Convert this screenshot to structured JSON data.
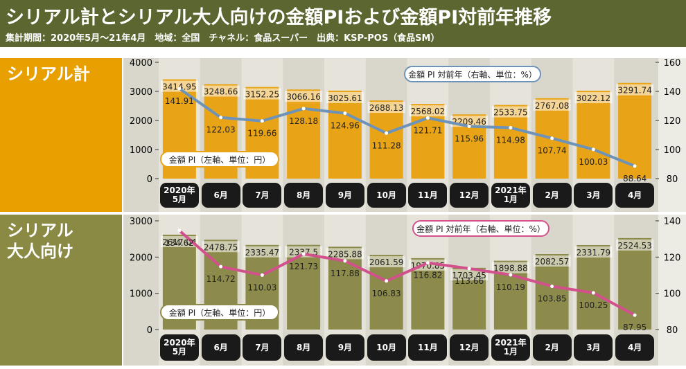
{
  "header": {
    "title": "シリアル計とシリアル大人向けの金額PIおよび金額PI対前年推移",
    "subtitle": "集計期間：2020年5月～21年4月　地域：全国　チャネル：食品スーパー　出典：KSP-POS（食品SM）"
  },
  "chart_data": [
    {
      "type": "combo",
      "title": "シリアル計",
      "categories": [
        "2020年\n5月",
        "6月",
        "7月",
        "8月",
        "9月",
        "10月",
        "11月",
        "12月",
        "2021年\n1月",
        "2月",
        "3月",
        "4月"
      ],
      "series": [
        {
          "name": "金額 PI（左軸、単位：円）",
          "color": "#e8a317",
          "values": [
            3414.95,
            3248.66,
            3152.25,
            3066.16,
            3025.61,
            2688.13,
            2568.02,
            2209.46,
            2533.75,
            2767.08,
            3022.12,
            3291.74
          ]
        },
        {
          "name": "金額 PI 対前年（右軸、単位：%）",
          "color": "#6e93b8",
          "axis": "y2",
          "values": [
            141.91,
            122.03,
            119.66,
            128.18,
            124.96,
            111.28,
            121.71,
            115.96,
            114.98,
            107.74,
            100.03,
            88.64
          ]
        }
      ],
      "ylim": [
        0,
        4000
      ],
      "yticks": [
        0,
        1000,
        2000,
        3000,
        4000
      ],
      "y2lim": [
        80,
        160
      ],
      "y2ticks": [
        80,
        100,
        120,
        140,
        160
      ],
      "panel_color": "#e8a000"
    },
    {
      "type": "combo",
      "title": "シリアル\n大人向け",
      "categories": [
        "2020年\n5月",
        "6月",
        "7月",
        "8月",
        "9月",
        "10月",
        "11月",
        "12月",
        "2021年\n1月",
        "2月",
        "3月",
        "4月"
      ],
      "series": [
        {
          "name": "金額 PI（左軸、単位：円）",
          "color": "#8c8b4b",
          "values": [
            2617.04,
            2478.75,
            2335.47,
            2337.5,
            2285.88,
            2061.59,
            1970.85,
            1703.45,
            1898.88,
            2082.57,
            2331.79,
            2524.53
          ]
        },
        {
          "name": "金額 PI 対前年（右軸、単位：%）",
          "color": "#d2508c",
          "axis": "y2",
          "values": [
            134.62,
            114.72,
            110.03,
            121.73,
            117.88,
            106.83,
            116.82,
            113.66,
            110.19,
            103.85,
            100.25,
            87.95
          ]
        }
      ],
      "ylim": [
        0,
        3000
      ],
      "yticks": [
        0,
        1000,
        2000,
        3000
      ],
      "y2lim": [
        80,
        140
      ],
      "y2ticks": [
        80,
        100,
        120,
        140
      ],
      "panel_color": "#8a8a45"
    }
  ]
}
